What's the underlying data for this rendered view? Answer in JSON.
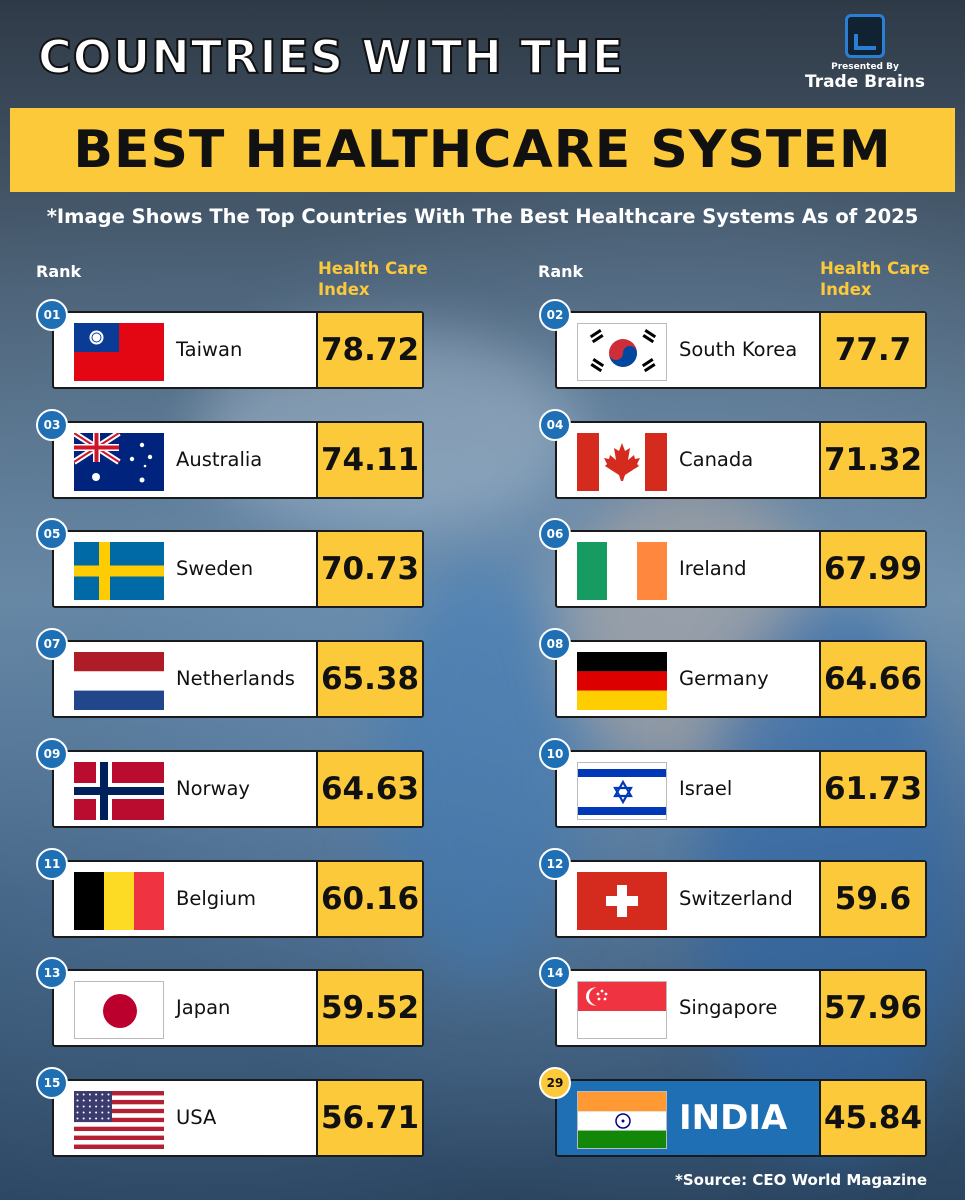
{
  "header": {
    "title_line1": "COUNTRIES WITH THE",
    "title_line2": "BEST HEALTHCARE SYSTEM",
    "subtitle": "*Image Shows The Top Countries With The Best Healthcare Systems As of 2025",
    "presented_by": "Presented By",
    "brand": "Trade Brains",
    "logo_icon": "trade-brains-logo-icon"
  },
  "column_headers": {
    "rank": "Rank",
    "index_line1": "Health Care",
    "index_line2": "Index"
  },
  "colors": {
    "accent_yellow": "#fcc93a",
    "badge_blue": "#1f6fb5",
    "india_blue": "#1f6fb5"
  },
  "countries": [
    {
      "rank": "01",
      "name": "Taiwan",
      "value": "78.72",
      "flag": "taiwan-flag-icon"
    },
    {
      "rank": "02",
      "name": "South Korea",
      "value": "77.7",
      "flag": "south-korea-flag-icon"
    },
    {
      "rank": "03",
      "name": "Australia",
      "value": "74.11",
      "flag": "australia-flag-icon"
    },
    {
      "rank": "04",
      "name": "Canada",
      "value": "71.32",
      "flag": "canada-flag-icon"
    },
    {
      "rank": "05",
      "name": "Sweden",
      "value": "70.73",
      "flag": "sweden-flag-icon"
    },
    {
      "rank": "06",
      "name": "Ireland",
      "value": "67.99",
      "flag": "ireland-flag-icon"
    },
    {
      "rank": "07",
      "name": "Netherlands",
      "value": "65.38",
      "flag": "netherlands-flag-icon"
    },
    {
      "rank": "08",
      "name": "Germany",
      "value": "64.66",
      "flag": "germany-flag-icon"
    },
    {
      "rank": "09",
      "name": "Norway",
      "value": "64.63",
      "flag": "norway-flag-icon"
    },
    {
      "rank": "10",
      "name": "Israel",
      "value": "61.73",
      "flag": "israel-flag-icon"
    },
    {
      "rank": "11",
      "name": "Belgium",
      "value": "60.16",
      "flag": "belgium-flag-icon"
    },
    {
      "rank": "12",
      "name": "Switzerland",
      "value": "59.6",
      "flag": "switzerland-flag-icon"
    },
    {
      "rank": "13",
      "name": "Japan",
      "value": "59.52",
      "flag": "japan-flag-icon"
    },
    {
      "rank": "14",
      "name": "Singapore",
      "value": "57.96",
      "flag": "singapore-flag-icon"
    },
    {
      "rank": "15",
      "name": "USA",
      "value": "56.71",
      "flag": "usa-flag-icon"
    },
    {
      "rank": "29",
      "name": "INDIA",
      "value": "45.84",
      "flag": "india-flag-icon",
      "highlight": true
    }
  ],
  "footer": {
    "source": "*Source: CEO World Magazine"
  }
}
